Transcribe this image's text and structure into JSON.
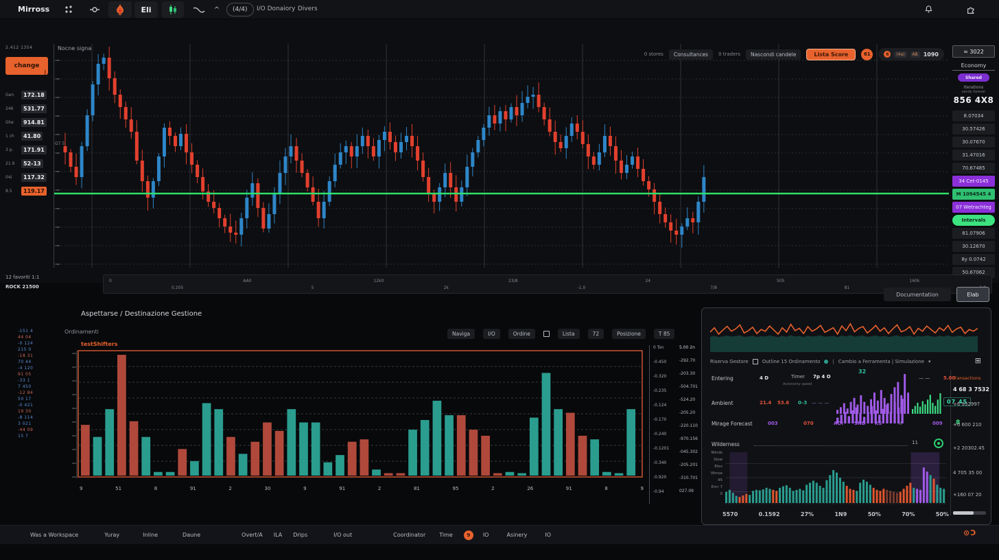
{
  "toolbar": {
    "brand": "Mirross",
    "eli_label": "Eli",
    "pill_label": "(4/4)",
    "io_label": "I/O Donaiory",
    "divers_label": "Divers"
  },
  "left_ladder": {
    "top_note": "2.412 1354",
    "change_button": "change",
    "rows": [
      {
        "label": "Gen",
        "value": "172.18",
        "highlight": false
      },
      {
        "label": "246",
        "value": "531.77",
        "highlight": false
      },
      {
        "label": "Gtw",
        "value": "914.81",
        "highlight": false
      },
      {
        "label": "1 ch",
        "value": "41.80",
        "highlight": false
      },
      {
        "label": "3 p.",
        "value": "171.91",
        "highlight": false
      },
      {
        "label": "21.9",
        "value": "52-13",
        "highlight": false
      },
      {
        "label": "04/",
        "value": "117.32",
        "highlight": false
      },
      {
        "label": "8.5",
        "value": "119.17",
        "highlight": true
      }
    ]
  },
  "chart_header": {
    "title": "Nocne signa",
    "axis_note": "G7 5",
    "overlay": [
      "0 stores",
      "Consultances",
      "0 traders",
      "Nascondi candele"
    ],
    "lista_button": "Lista Score",
    "badge": "61",
    "pill": [
      "6",
      "(4a)",
      "AB",
      "1090"
    ]
  },
  "right_ladder": {
    "range_box": "≈ 3022",
    "header": "Economy",
    "tag": "Shared",
    "sub1": "Iterations",
    "sub2": "sandy forever",
    "big_value": "856 4X8",
    "rows": [
      {
        "v": "8.07034",
        "type": "plain"
      },
      {
        "v": "30.57426",
        "type": "plain"
      },
      {
        "v": "30.07670",
        "type": "plain"
      },
      {
        "v": "31.47016",
        "type": "plain"
      },
      {
        "v": "70.67485",
        "type": "plain"
      },
      {
        "v": "34 Cet-0145",
        "type": "purple"
      },
      {
        "v": "M 1094545 4",
        "type": "green"
      },
      {
        "v": "07 Wetrachteg",
        "type": "purple"
      },
      {
        "v": "Intervals",
        "type": "greenpill"
      },
      {
        "v": "81.07906",
        "type": "plain"
      },
      {
        "v": "30.12670",
        "type": "plain"
      },
      {
        "v": "8y 0.0742",
        "type": "plain"
      },
      {
        "v": "50.67062",
        "type": "plain"
      }
    ]
  },
  "scroll_row": {
    "fav_label": "12 favoriti  1:1",
    "rock_label": "ROCK 21500",
    "ticks": [
      "0",
      "0.205",
      "AA0",
      "5",
      "12k0",
      "2k",
      "23/8",
      "-1.0",
      "24",
      "7/8",
      "505",
      "81",
      "160k",
      "2 8"
    ]
  },
  "bottom_left": {
    "title": "Aspettarse / Destinazione Gestione",
    "subtitle": "Ordinamenti",
    "series_label": "testShifters",
    "toolbar": [
      "Naviga",
      "I/O",
      "Ordine",
      "Lista",
      "72",
      "Posizione",
      "T 85"
    ],
    "watch_ticks": [
      {
        "t": "-151 4",
        "c": "b"
      },
      {
        "t": "44 04",
        "c": "r"
      },
      {
        "t": "-0 124",
        "c": "b"
      },
      {
        "t": "215 0",
        "c": "b"
      },
      {
        "t": "-18 31",
        "c": "r"
      },
      {
        "t": "70 44",
        "c": "b"
      },
      {
        "t": "-4 120",
        "c": "b"
      },
      {
        "t": "91 05",
        "c": "r"
      },
      {
        "t": "-33 1",
        "c": "b"
      },
      {
        "t": "7 450",
        "c": "b"
      },
      {
        "t": "-12 84",
        "c": "r"
      },
      {
        "t": "50 17",
        "c": "b"
      },
      {
        "t": "-0 421",
        "c": "b"
      },
      {
        "t": "19 30",
        "c": "r"
      },
      {
        "t": "-8 114",
        "c": "b"
      },
      {
        "t": "3 021",
        "c": "b"
      },
      {
        "t": "-44 09",
        "c": "r"
      },
      {
        "t": "15 7",
        "c": "b"
      }
    ],
    "scale_a": [
      "0 Tsn",
      "-0.450",
      "-0.320",
      "-0.235",
      "-0.124",
      "-0.170",
      "-0.240",
      "-0.1201",
      "-0.340",
      "-0.920",
      "-0.94"
    ],
    "scale_b": [
      "5.00 2n",
      "-292.70",
      "-203.30",
      "-504.701",
      "-524.20",
      "-205.20",
      "-220.110",
      "-970.156",
      "-045.302",
      "-205.201",
      "-310.701",
      "027.09"
    ]
  },
  "panel_buttons": {
    "documentation": "Documentation",
    "elab": "Elab"
  },
  "right_panel": {
    "filter_left": "Riserva Gestore",
    "filter_checkbox": "Outline 15 Ordinamento",
    "filter_right": "Cambio a Ferramenta | Simulazione",
    "rows": {
      "r1": {
        "label": "Entering",
        "c1": "4 D",
        "c2": "Timer",
        "c2sub": "Autonomy speed",
        "c3": "7p 4 O",
        "spark_value": "32",
        "dashes": "— —",
        "right_red": "5.00"
      },
      "r2": {
        "label": "Ambient",
        "red1": "21.4",
        "red2": "53.6",
        "teal": "0–3",
        "dashes": "— — —",
        "value_box": "07 45"
      },
      "r3": {
        "label": "Mirage Forecast",
        "purple1": "003",
        "red": "070",
        "tags": [
          "AOI",
          "SND",
          "KS"
        ],
        "muted": "N",
        "purple2": "009",
        "green": "8"
      },
      "r4": {
        "label": "Wilderness",
        "num": "11"
      }
    },
    "dense_labels": [
      "Winds",
      "Slow",
      "Elev",
      "Wmse",
      "45",
      "Emr 7",
      "0"
    ],
    "bottom_ticks": [
      "5570",
      "0.1592",
      "27%",
      "1N9",
      "50%",
      "70%",
      "50%"
    ],
    "transactions": {
      "title": "Transactions",
      "values": [
        "4 68 3 7532",
        "+6 932997",
        "+0 600 210",
        "+2 20302.45",
        "4 705 35 00",
        "+160 07 20"
      ]
    }
  },
  "status_bar": {
    "items": [
      "Was a Workspace",
      "Yuray",
      "Inline",
      "Daune",
      "Overt/A",
      "ILA",
      "Drips",
      "I/O out",
      "Coordinator",
      "Time"
    ],
    "badge": "9",
    "items2": [
      "IO",
      "Asinery",
      "IO"
    ],
    "right_icon": "⊙Ɔ"
  },
  "colors": {
    "accent_orange": "#e8622d",
    "candle_up": "#2e86c8",
    "candle_down": "#e2402e",
    "green_line": "#2ee06a",
    "bar_teal": "#2a9d8f",
    "bar_red": "#b0493b",
    "purple": "#a05ae8",
    "green": "#3ddc84",
    "maroon": "#7a3a30"
  },
  "chart_data": [
    {
      "type": "candlestick",
      "name": "main-price",
      "title": "Nocne signa",
      "ylim": [
        0,
        100
      ],
      "hline": 32,
      "grid": true,
      "close": [
        52,
        45,
        40,
        55,
        70,
        85,
        95,
        98,
        88,
        80,
        74,
        68,
        62,
        48,
        38,
        30,
        38,
        50,
        64,
        60,
        55,
        61,
        52,
        46,
        40,
        33,
        28,
        25,
        20,
        16,
        13,
        12,
        20,
        30,
        37,
        25,
        15,
        22,
        32,
        42,
        50,
        55,
        48,
        42,
        35,
        28,
        20,
        28,
        38,
        46,
        52,
        55,
        50,
        55,
        60,
        55,
        50,
        58,
        62,
        57,
        52,
        57,
        60,
        55,
        48,
        40,
        32,
        28,
        35,
        42,
        35,
        28,
        35,
        45,
        52,
        58,
        64,
        70,
        66,
        72,
        68,
        74,
        70,
        76,
        79,
        80,
        74,
        68,
        62,
        57,
        54,
        60,
        66,
        62,
        56,
        50,
        46,
        52,
        60,
        55,
        48,
        42,
        46,
        50,
        44,
        38,
        34,
        28,
        22,
        18,
        14,
        12,
        16,
        20,
        18,
        28,
        40
      ]
    },
    {
      "type": "bar",
      "name": "volume-profile",
      "ylim": [
        0,
        100
      ],
      "values": [
        42,
        32,
        55,
        100,
        45,
        32,
        3,
        3,
        22,
        12,
        60,
        55,
        32,
        18,
        28,
        44,
        37,
        55,
        44,
        44,
        11,
        17,
        28,
        30,
        5,
        2,
        2,
        38,
        46,
        62,
        50,
        50,
        38,
        33,
        2,
        3,
        2,
        48,
        85,
        55,
        52,
        33,
        30,
        3,
        2,
        55
      ],
      "colors": [
        "r",
        "t",
        "t",
        "r",
        "r",
        "t",
        "t",
        "t",
        "r",
        "t",
        "t",
        "t",
        "r",
        "t",
        "r",
        "r",
        "r",
        "t",
        "t",
        "t",
        "t",
        "t",
        "r",
        "r",
        "t",
        "r",
        "r",
        "t",
        "t",
        "t",
        "t",
        "r",
        "r",
        "r",
        "r",
        "t",
        "t",
        "t",
        "t",
        "t",
        "r",
        "r",
        "t",
        "t",
        "t",
        "t"
      ],
      "xlabels": [
        "9",
        "51",
        "8",
        "91",
        "2",
        "30",
        "9",
        "91",
        "2",
        "81",
        "95",
        "2",
        "26",
        "91",
        "8",
        "9"
      ]
    },
    {
      "type": "line",
      "name": "spark-orange",
      "values": [
        55,
        70,
        48,
        62,
        75,
        58,
        66,
        80,
        52,
        60,
        72,
        50,
        64,
        58,
        76,
        62,
        48,
        70,
        55,
        82,
        60,
        68,
        50,
        74,
        58,
        66,
        78,
        54,
        62,
        70,
        48,
        76,
        60,
        84,
        56,
        68,
        74,
        52,
        64,
        78,
        58,
        70,
        50,
        66,
        80,
        56,
        62,
        74,
        48,
        68,
        58,
        76,
        64,
        52,
        70,
        60,
        78,
        54,
        66,
        72,
        50,
        64,
        58,
        68
      ]
    },
    {
      "type": "bar",
      "name": "dense-bars",
      "values": [
        22,
        26,
        20,
        14,
        12,
        15,
        18,
        16,
        24,
        26,
        25,
        27,
        30,
        28,
        26,
        24,
        30,
        33,
        35,
        30,
        24,
        26,
        28,
        25,
        36,
        40,
        44,
        40,
        34,
        30,
        45,
        55,
        65,
        60,
        50,
        42,
        34,
        28,
        26,
        24,
        40,
        46,
        42,
        36,
        30,
        26,
        24,
        28,
        26,
        24,
        22,
        20,
        22,
        28,
        34,
        40,
        30,
        28,
        26,
        70,
        62,
        55,
        48,
        36,
        30,
        28
      ],
      "colors": [
        "t",
        "t",
        "t",
        "t",
        "o",
        "o",
        "o",
        "t",
        "t",
        "t",
        "t",
        "t",
        "t",
        "t",
        "o",
        "o",
        "t",
        "t",
        "t",
        "t",
        "t",
        "t",
        "t",
        "t",
        "t",
        "t",
        "t",
        "t",
        "t",
        "t",
        "t",
        "t",
        "t",
        "t",
        "t",
        "t",
        "o",
        "o",
        "o",
        "t",
        "t",
        "t",
        "t",
        "t",
        "o",
        "o",
        "o",
        "o",
        "m",
        "m",
        "m",
        "m",
        "o",
        "o",
        "o",
        "o",
        "t",
        "p",
        "p",
        "p",
        "p",
        "t",
        "o",
        "t",
        "t",
        "t"
      ]
    },
    {
      "type": "bar",
      "name": "spark-purple-1",
      "values": [
        3,
        5,
        8,
        4,
        9,
        12,
        7,
        14,
        9,
        6,
        11,
        16,
        10,
        18,
        12,
        8,
        15,
        20,
        24,
        14,
        30,
        16
      ]
    },
    {
      "type": "bar",
      "name": "spark-purple-2",
      "values": [
        8,
        12,
        16,
        10,
        18,
        22,
        14,
        9,
        16,
        24,
        18,
        12,
        20,
        26,
        16,
        30,
        22,
        34
      ]
    },
    {
      "type": "bar",
      "name": "spark-green-2",
      "values": [
        6,
        10,
        14,
        9,
        16,
        12,
        18,
        24,
        14,
        10,
        18,
        26
      ]
    }
  ]
}
